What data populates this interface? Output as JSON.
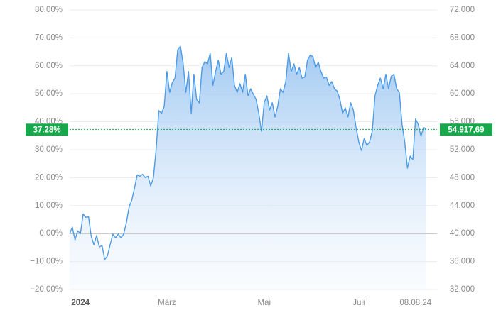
{
  "chart_data": {
    "type": "line",
    "categories": [
      null,
      null,
      null,
      null,
      "2024",
      null,
      null,
      null,
      null,
      null,
      null,
      null,
      null,
      null,
      null,
      null,
      null,
      null,
      null,
      null,
      null,
      null,
      null,
      null,
      null,
      null,
      null,
      null,
      null,
      null,
      null,
      null,
      null,
      null,
      null,
      null,
      "März",
      null,
      null,
      null,
      null,
      null,
      null,
      null,
      null,
      null,
      null,
      null,
      null,
      null,
      null,
      null,
      null,
      null,
      null,
      null,
      null,
      null,
      null,
      null,
      null,
      null,
      null,
      null,
      null,
      null,
      null,
      null,
      null,
      null,
      null,
      null,
      "Mai",
      null,
      null,
      null,
      null,
      null,
      null,
      null,
      null,
      null,
      null,
      null,
      null,
      null,
      null,
      null,
      null,
      null,
      null,
      null,
      null,
      null,
      null,
      null,
      null,
      null,
      null,
      null,
      null,
      null,
      null,
      null,
      null,
      null,
      null,
      "Juli",
      null,
      null,
      null,
      null,
      null,
      null,
      null,
      null,
      null,
      null,
      null,
      null,
      null,
      null,
      null,
      null,
      null,
      null,
      null,
      null,
      "08.08.24",
      null,
      null,
      null,
      null
    ],
    "series": [
      {
        "color": "#4d9be6",
        "values": [
          0,
          2.3,
          -2.3,
          1,
          0,
          7,
          5.8,
          6,
          -1,
          -4,
          -0.7,
          -4.8,
          -4.3,
          -9.3,
          -8,
          -4,
          -0.2,
          -1.5,
          -0.2,
          -1.5,
          -0.2,
          4,
          9.5,
          12,
          16.3,
          21,
          20.5,
          21.2,
          20,
          20.5,
          17,
          20,
          30,
          44,
          43,
          45.5,
          58,
          50.5,
          54,
          55.6,
          65.8,
          67,
          61,
          50.5,
          58,
          43,
          57,
          48,
          46.7,
          59.4,
          61.5,
          60.7,
          64.5,
          53,
          58,
          62,
          57,
          58,
          64.5,
          59.4,
          63,
          53,
          50.5,
          53.6,
          50.5,
          57,
          49.3,
          51.8,
          49.8,
          48,
          43,
          36.6,
          46.8,
          49.3,
          44.2,
          46.8,
          41.7,
          45.5,
          51.8,
          50.5,
          54.4,
          64.5,
          58,
          60.7,
          57,
          59.4,
          55.6,
          56,
          62,
          63.8,
          63.3,
          59.4,
          61.3,
          58,
          55.6,
          56,
          53,
          54.4,
          51.8,
          51,
          48,
          43,
          45,
          41.7,
          46.8,
          44.2,
          37.9,
          32.8,
          29.7,
          34,
          31.5,
          32.8,
          36.6,
          49.3,
          53,
          55.6,
          51.8,
          57,
          51.8,
          56.3,
          57,
          51.8,
          50.5,
          39.1,
          32.8,
          23.4,
          27.7,
          26.5,
          41,
          39,
          34.8,
          38,
          37.28
        ]
      }
    ],
    "ylim": [
      -20,
      80
    ],
    "yticks": [
      {
        "value": -20,
        "label": "−20.00%"
      },
      {
        "value": -10,
        "label": "−10.00%"
      },
      {
        "value": 0,
        "label": "0.00%"
      },
      {
        "value": 10,
        "label": "10.00%"
      },
      {
        "value": 20,
        "label": "20.00%"
      },
      {
        "value": 30,
        "label": "30.00%"
      },
      {
        "value": 40,
        "label": "40.00%"
      },
      {
        "value": 50,
        "label": "50.00%"
      },
      {
        "value": 60,
        "label": "60.00%"
      },
      {
        "value": 70,
        "label": "70.00%"
      },
      {
        "value": 80,
        "label": "80.00%"
      }
    ],
    "y2lim": [
      32000,
      72000
    ],
    "y2ticks": [
      {
        "value": 32000,
        "label": "32.000"
      },
      {
        "value": 36000,
        "label": "36.000"
      },
      {
        "value": 40000,
        "label": "40.000"
      },
      {
        "value": 44000,
        "label": "44.000"
      },
      {
        "value": 48000,
        "label": "48.000"
      },
      {
        "value": 52000,
        "label": "52.000"
      },
      {
        "value": 56000,
        "label": "56.000"
      },
      {
        "value": 60000,
        "label": "60.000"
      },
      {
        "value": 64000,
        "label": "64.000"
      },
      {
        "value": 68000,
        "label": "68.000"
      },
      {
        "value": 72000,
        "label": "72.000"
      }
    ],
    "current": {
      "value": 37.28,
      "label": "37.28%"
    },
    "current_price": {
      "value": 54917.69,
      "label": "54.917,69",
      "axis": "y2"
    },
    "badge_color": "#17a84b",
    "grid": true
  }
}
